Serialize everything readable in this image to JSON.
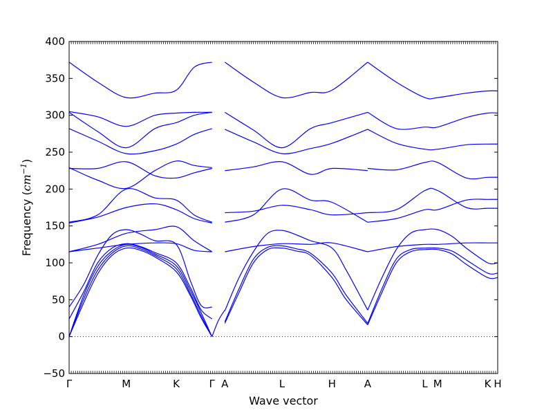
{
  "chart_data": {
    "type": "line",
    "xlabel": "Wave vector",
    "ylabel_prefix": "Frequency (",
    "ylabel_unit": "cm",
    "ylabel_exp": "−1",
    "ylabel_suffix": ")",
    "ylim": [
      -50,
      400
    ],
    "yticks": [
      -50,
      0,
      50,
      100,
      150,
      200,
      250,
      300,
      350,
      400
    ],
    "x_path_length": 6.0,
    "xticks": [
      {
        "label": "Γ",
        "x": 0.0
      },
      {
        "label": "M",
        "x": 0.8
      },
      {
        "label": "K",
        "x": 1.5
      },
      {
        "label": "Γ",
        "x": 2.0
      },
      {
        "label": "A",
        "x": 2.18
      },
      {
        "label": "L",
        "x": 2.98
      },
      {
        "label": "H",
        "x": 3.68
      },
      {
        "label": "A",
        "x": 4.18
      },
      {
        "label": "L",
        "x": 4.98
      },
      {
        "label": "M",
        "x": 5.16
      },
      {
        "label": "K",
        "x": 5.86
      },
      {
        "label": "H",
        "x": 6.0
      }
    ],
    "zero_line": true,
    "line_color": "#0000ff",
    "series": [
      {
        "x": [
          0,
          0.2,
          0.4,
          0.6,
          0.8,
          1.0,
          1.2,
          1.5,
          1.7,
          1.85,
          2.0
        ],
        "values": [
          0,
          45,
          85,
          110,
          120,
          117,
          108,
          88,
          55,
          25,
          0
        ]
      },
      {
        "x": [
          0,
          0.2,
          0.4,
          0.6,
          0.8,
          1.0,
          1.2,
          1.5,
          1.7,
          1.85,
          2.0
        ],
        "values": [
          0,
          50,
          90,
          113,
          123,
          119,
          110,
          92,
          58,
          28,
          0
        ]
      },
      {
        "x": [
          0,
          0.2,
          0.4,
          0.6,
          0.8,
          1.0,
          1.2,
          1.5,
          1.7,
          1.85,
          2.0
        ],
        "values": [
          0,
          55,
          95,
          116,
          125,
          121,
          112,
          96,
          62,
          32,
          0
        ]
      },
      {
        "x": [
          0,
          0.2,
          0.4,
          0.6,
          0.8,
          1.0,
          1.2,
          1.5,
          1.7,
          1.85,
          2.0
        ],
        "values": [
          24,
          60,
          100,
          120,
          126,
          122,
          114,
          100,
          66,
          36,
          24
        ]
      },
      {
        "x": [
          0,
          0.2,
          0.4,
          0.6,
          0.8,
          1.0,
          1.2,
          1.5,
          1.7,
          1.85,
          2.0
        ],
        "values": [
          40,
          70,
          110,
          138,
          145,
          139,
          130,
          125,
          75,
          42,
          40
        ]
      },
      {
        "x": [
          0,
          0.4,
          0.8,
          1.2,
          1.5,
          1.75,
          2.0
        ],
        "values": [
          115,
          120,
          125,
          127,
          126,
          117,
          115
        ]
      },
      {
        "x": [
          0,
          0.4,
          0.8,
          1.2,
          1.5,
          1.75,
          2.0
        ],
        "values": [
          115,
          125,
          140,
          145,
          149,
          130,
          115
        ]
      },
      {
        "x": [
          0,
          0.4,
          0.8,
          1.2,
          1.5,
          1.75,
          2.0
        ],
        "values": [
          155,
          165,
          200,
          188,
          185,
          165,
          155
        ]
      },
      {
        "x": [
          0,
          0.4,
          0.8,
          1.2,
          1.5,
          1.75,
          2.0
        ],
        "values": [
          154,
          162,
          175,
          180,
          172,
          160,
          154
        ]
      },
      {
        "x": [
          0,
          0.4,
          0.8,
          1.2,
          1.5,
          1.75,
          2.0
        ],
        "values": [
          228,
          228,
          237,
          218,
          215,
          222,
          228
        ]
      },
      {
        "x": [
          0,
          0.4,
          0.8,
          1.2,
          1.5,
          1.75,
          2.0
        ],
        "values": [
          229,
          212,
          201,
          225,
          238,
          232,
          229
        ]
      },
      {
        "x": [
          0,
          0.4,
          0.8,
          1.2,
          1.5,
          1.75,
          2.0
        ],
        "values": [
          282,
          265,
          248,
          252,
          261,
          274,
          282
        ]
      },
      {
        "x": [
          0,
          0.4,
          0.8,
          1.2,
          1.5,
          1.75,
          2.0
        ],
        "values": [
          304,
          278,
          256,
          282,
          290,
          300,
          304
        ]
      },
      {
        "x": [
          0,
          0.4,
          0.8,
          1.2,
          1.5,
          1.75,
          2.0
        ],
        "values": [
          305,
          298,
          285,
          300,
          303,
          304,
          304
        ]
      },
      {
        "x": [
          0,
          0.4,
          0.8,
          1.2,
          1.5,
          1.75,
          2.0
        ],
        "values": [
          372,
          345,
          324,
          330,
          334,
          365,
          372
        ]
      },
      {
        "x": [
          2.0,
          2.09,
          2.18
        ],
        "values": [
          0,
          22,
          36
        ]
      },
      {
        "x": [
          2.18,
          2.38,
          2.58,
          2.78,
          2.98,
          3.18,
          3.38,
          3.68,
          3.88,
          4.18
        ],
        "values": [
          18,
          60,
          100,
          118,
          120,
          116,
          110,
          80,
          50,
          16
        ]
      },
      {
        "x": [
          2.18,
          2.38,
          2.58,
          2.78,
          2.98,
          3.18,
          3.38,
          3.68,
          3.88,
          4.18
        ],
        "values": [
          20,
          65,
          105,
          121,
          123,
          119,
          113,
          86,
          56,
          18
        ]
      },
      {
        "x": [
          2.18,
          2.38,
          2.58,
          2.78,
          2.98,
          3.18,
          3.38,
          3.68,
          3.88,
          4.18
        ],
        "values": [
          35,
          80,
          115,
          140,
          144,
          138,
          130,
          120,
          90,
          36
        ]
      },
      {
        "x": [
          2.18,
          2.58,
          2.98,
          3.38,
          3.68,
          4.18
        ],
        "values": [
          115,
          122,
          126,
          125,
          127,
          115
        ]
      },
      {
        "x": [
          2.18,
          2.58,
          2.98,
          3.38,
          3.68,
          4.18
        ],
        "values": [
          155,
          165,
          200,
          185,
          182,
          155
        ]
      },
      {
        "x": [
          2.18,
          2.58,
          2.98,
          3.38,
          3.68,
          4.18
        ],
        "values": [
          168,
          170,
          178,
          172,
          165,
          168
        ]
      },
      {
        "x": [
          2.18,
          2.58,
          2.98,
          3.38,
          3.68,
          4.18
        ],
        "values": [
          225,
          230,
          237,
          220,
          228,
          225
        ]
      },
      {
        "x": [
          2.18,
          2.58,
          2.98,
          3.38,
          3.68,
          4.18
        ],
        "values": [
          281,
          264,
          248,
          255,
          262,
          281
        ]
      },
      {
        "x": [
          2.18,
          2.58,
          2.98,
          3.38,
          3.68,
          4.18
        ],
        "values": [
          304,
          280,
          256,
          282,
          290,
          304
        ]
      },
      {
        "x": [
          2.18,
          2.58,
          2.98,
          3.38,
          3.68,
          4.18
        ],
        "values": [
          372,
          345,
          324,
          331,
          334,
          372
        ]
      },
      {
        "x": [
          4.18,
          4.38,
          4.58,
          4.78,
          4.98,
          5.16,
          5.36,
          5.56,
          5.86,
          6.0
        ],
        "values": [
          16,
          60,
          100,
          115,
          118,
          118,
          112,
          98,
          80,
          80
        ]
      },
      {
        "x": [
          4.18,
          4.38,
          4.58,
          4.78,
          4.98,
          5.16,
          5.36,
          5.56,
          5.86,
          6.0
        ],
        "values": [
          18,
          65,
          105,
          118,
          120,
          120,
          116,
          104,
          86,
          86
        ]
      },
      {
        "x": [
          4.18,
          4.38,
          4.58,
          4.78,
          4.98,
          5.16,
          5.36,
          5.56,
          5.86,
          6.0
        ],
        "values": [
          36,
          80,
          118,
          140,
          145,
          145,
          136,
          120,
          100,
          100
        ]
      },
      {
        "x": [
          4.18,
          4.58,
          4.98,
          5.16,
          5.56,
          5.86,
          6.0
        ],
        "values": [
          115,
          122,
          125,
          125,
          127,
          127,
          127
        ]
      },
      {
        "x": [
          4.18,
          4.58,
          4.98,
          5.16,
          5.56,
          5.86,
          6.0
        ],
        "values": [
          155,
          160,
          172,
          172,
          185,
          186,
          186
        ]
      },
      {
        "x": [
          4.18,
          4.58,
          4.98,
          5.16,
          5.56,
          5.86,
          6.0
        ],
        "values": [
          168,
          172,
          198,
          198,
          175,
          174,
          174
        ]
      },
      {
        "x": [
          4.18,
          4.58,
          4.98,
          5.16,
          5.56,
          5.86,
          6.0
        ],
        "values": [
          228,
          226,
          236,
          236,
          215,
          216,
          216
        ]
      },
      {
        "x": [
          4.18,
          4.58,
          4.98,
          5.16,
          5.56,
          5.86,
          6.0
        ],
        "values": [
          281,
          262,
          254,
          254,
          260,
          261,
          261
        ]
      },
      {
        "x": [
          4.18,
          4.58,
          4.98,
          5.16,
          5.56,
          5.86,
          6.0
        ],
        "values": [
          304,
          282,
          284,
          284,
          297,
          303,
          303
        ]
      },
      {
        "x": [
          4.18,
          4.58,
          4.98,
          5.16,
          5.56,
          5.86,
          6.0
        ],
        "values": [
          372,
          345,
          324,
          324,
          330,
          333,
          333
        ]
      }
    ]
  }
}
